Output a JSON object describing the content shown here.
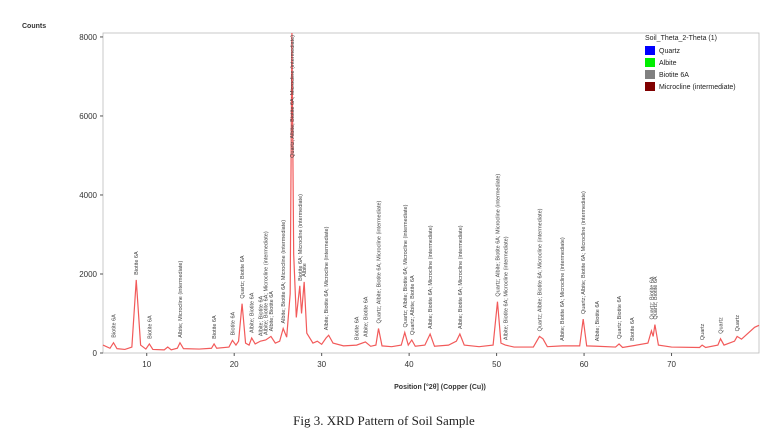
{
  "chart_data": {
    "type": "line",
    "y_label": "Counts",
    "x_label": "Position [°2θ] (Copper (Cu))",
    "caption": "Fig 3. XRD Pattern of Soil Sample",
    "xlim": [
      5,
      80
    ],
    "ylim": [
      0,
      8100
    ],
    "xticks": [
      10,
      20,
      30,
      40,
      50,
      60,
      70
    ],
    "yticks": [
      0,
      2000,
      4000,
      6000,
      8000
    ],
    "series": [
      {
        "name": "Soil_Theta_2-Theta (1)",
        "color": "#f25a5a",
        "x": [
          5,
          5.8,
          6.2,
          6.6,
          7.5,
          8.3,
          8.8,
          9.3,
          9.9,
          10.3,
          10.7,
          12.0,
          12.4,
          12.8,
          13.5,
          13.8,
          14.2,
          16.0,
          17.4,
          17.7,
          18.0,
          19.4,
          19.8,
          20.2,
          20.5,
          20.9,
          21.3,
          21.7,
          22.0,
          22.4,
          23.0,
          23.6,
          24.2,
          24.7,
          25.2,
          25.6,
          26.0,
          26.4,
          26.6,
          26.8,
          27.1,
          27.5,
          27.7,
          28.0,
          28.3,
          29.0,
          29.5,
          30.0,
          30.5,
          30.8,
          31.3,
          32.5,
          34.0,
          35.0,
          35.6,
          36.2,
          36.5,
          36.9,
          38.0,
          39.1,
          39.5,
          39.9,
          40.3,
          40.7,
          41.8,
          42.4,
          42.9,
          44.5,
          45.4,
          45.8,
          46.3,
          48.0,
          49.6,
          50.1,
          50.5,
          51.0,
          52.0,
          54.2,
          54.9,
          55.3,
          55.8,
          57.5,
          59.5,
          59.9,
          60.3,
          61.5,
          63.6,
          64.0,
          64.4,
          65.5,
          67.3,
          67.7,
          67.9,
          68.1,
          68.5,
          70,
          73.2,
          73.5,
          73.9,
          75.3,
          75.6,
          76.0,
          77.2,
          77.5,
          78.0,
          79.5,
          80
        ],
        "values": [
          200,
          120,
          260,
          110,
          90,
          150,
          1850,
          200,
          100,
          230,
          90,
          80,
          150,
          80,
          120,
          260,
          110,
          100,
          120,
          230,
          120,
          150,
          320,
          200,
          300,
          1250,
          250,
          200,
          380,
          230,
          300,
          330,
          420,
          250,
          300,
          620,
          400,
          1500,
          8100,
          2500,
          900,
          1700,
          1000,
          1800,
          500,
          250,
          300,
          220,
          380,
          450,
          250,
          180,
          200,
          280,
          170,
          200,
          620,
          180,
          160,
          200,
          520,
          200,
          330,
          170,
          200,
          480,
          170,
          200,
          300,
          480,
          200,
          160,
          200,
          1300,
          250,
          200,
          150,
          150,
          420,
          360,
          160,
          180,
          180,
          860,
          180,
          170,
          150,
          230,
          140,
          180,
          250,
          560,
          420,
          720,
          200,
          150,
          140,
          200,
          140,
          200,
          360,
          200,
          300,
          420,
          350,
          650,
          700
        ]
      }
    ],
    "legend": {
      "title": "Soil_Theta_2-Theta (1)",
      "items": [
        {
          "name": "Quartz",
          "color": "#0000ff"
        },
        {
          "name": "Albite",
          "color": "#00ee00"
        },
        {
          "name": "Biotite 6A",
          "color": "#808080"
        },
        {
          "name": "Microcline (intermediate)",
          "color": "#800000"
        }
      ]
    },
    "annotations": [
      {
        "x": 6.2,
        "text": "Biotite 6A"
      },
      {
        "x": 8.8,
        "text": "Biotite 6A"
      },
      {
        "x": 10.3,
        "text": "Biotite 6A"
      },
      {
        "x": 13.8,
        "text": "Albite; Microcline (intermediate)"
      },
      {
        "x": 17.7,
        "text": "Biotite 6A"
      },
      {
        "x": 19.8,
        "text": "Biotite 6A"
      },
      {
        "x": 20.9,
        "text": "Quartz; Biotite 6A"
      },
      {
        "x": 22.0,
        "text": "Albite; Biotite 6A"
      },
      {
        "x": 23.0,
        "text": "Albite; Biotite 6A"
      },
      {
        "x": 23.6,
        "text": "Albite; Biotite 6A; Microcline (intermediate)"
      },
      {
        "x": 24.2,
        "text": "Albite; Biotite 6A"
      },
      {
        "x": 25.6,
        "text": "Albite; Biotite 6A; Microcline (intermediate)"
      },
      {
        "x": 26.6,
        "text": "Quartz; Albite; Biotite 6A; Microcline (intermediate)"
      },
      {
        "x": 27.5,
        "text": "Biotite 6A; Microcline (intermediate)"
      },
      {
        "x": 28.0,
        "text": "Albite"
      },
      {
        "x": 30.5,
        "text": "Albite; Biotite 6A; Microcline (intermediate)"
      },
      {
        "x": 34.0,
        "text": "Biotite 6A"
      },
      {
        "x": 35.0,
        "text": "Albite; Biotite 6A"
      },
      {
        "x": 36.5,
        "text": "Quartz; Albite; Biotite 6A; Microcline (intermediate)"
      },
      {
        "x": 39.5,
        "text": "Quartz; Albite; Biotite 6A; Microcline (intermediate)"
      },
      {
        "x": 40.3,
        "text": "Quartz; Albite; Biotite 6A"
      },
      {
        "x": 42.4,
        "text": "Albite; Biotite 6A; Microcline (intermediate)"
      },
      {
        "x": 45.8,
        "text": "Albite; Biotite 6A; Microcline (intermediate)"
      },
      {
        "x": 50.1,
        "text": "Quartz; Albite; Biotite 6A; Microcline (intermediate)"
      },
      {
        "x": 51.0,
        "text": "Albite; Biotite 6A; Microcline (intermediate)"
      },
      {
        "x": 54.9,
        "text": "Quartz; Albite; Biotite 6A; Microcline (intermediate)"
      },
      {
        "x": 57.5,
        "text": "Albite; Biotite 6A; Microcline (intermediate)"
      },
      {
        "x": 59.9,
        "text": "Quartz; Albite; Biotite 6A; Microcline (intermediate)"
      },
      {
        "x": 61.5,
        "text": "Albite; Biotite 6A"
      },
      {
        "x": 64.0,
        "text": "Quartz; Biotite 6A"
      },
      {
        "x": 65.5,
        "text": "Biotite 6A"
      },
      {
        "x": 67.7,
        "text": "Quartz; Biotite 6A"
      },
      {
        "x": 68.1,
        "text": "Quartz; Biotite 6A"
      },
      {
        "x": 73.5,
        "text": "Quartz"
      },
      {
        "x": 75.6,
        "text": "Quartz"
      },
      {
        "x": 77.5,
        "text": "Quartz"
      }
    ]
  }
}
